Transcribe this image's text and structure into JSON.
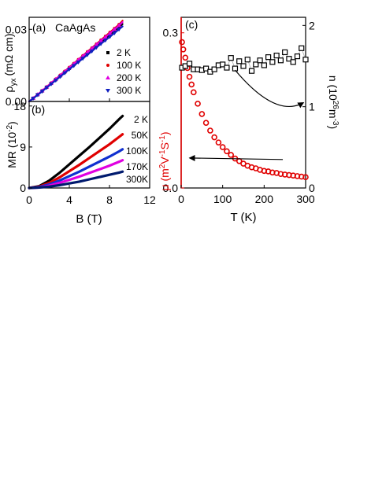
{
  "chart_data": [
    {
      "id": "a",
      "type": "scatter",
      "panel_label": "(a)",
      "title": "CaAgAs",
      "xlabel": "",
      "ylabel": "ρyx (mΩ cm)",
      "ylabel_main": "ρ",
      "ylabel_sub": "yx",
      "ylabel_unit": "(mΩ cm)",
      "xlim": [
        0,
        12
      ],
      "ylim": [
        0,
        0.035
      ],
      "yticks": [
        "0.00",
        "0.03"
      ],
      "ytick_values": [
        0,
        0.03
      ],
      "legend_position": "right",
      "series": [
        {
          "name": "2 K",
          "color": "#000000",
          "marker": "square",
          "x": [
            0,
            1,
            2,
            3,
            4,
            5,
            6,
            7,
            8,
            9,
            9.3
          ],
          "y": [
            0,
            0.0033,
            0.0068,
            0.0103,
            0.0138,
            0.0172,
            0.0207,
            0.0242,
            0.0277,
            0.0311,
            0.0322
          ]
        },
        {
          "name": "100 K",
          "color": "#e00000",
          "marker": "circle",
          "x": [
            0,
            1,
            2,
            3,
            4,
            5,
            6,
            7,
            8,
            9,
            9.3
          ],
          "y": [
            0,
            0.0034,
            0.007,
            0.0106,
            0.0142,
            0.0178,
            0.0214,
            0.025,
            0.0286,
            0.0322,
            0.0336
          ]
        },
        {
          "name": "200 K",
          "color": "#e000e0",
          "marker": "triangle-up",
          "x": [
            0,
            1,
            2,
            3,
            4,
            5,
            6,
            7,
            8,
            9,
            9.3
          ],
          "y": [
            0,
            0.0034,
            0.0069,
            0.0105,
            0.014,
            0.0176,
            0.0211,
            0.0247,
            0.0282,
            0.0318,
            0.033
          ]
        },
        {
          "name": "300 K",
          "color": "#1020c0",
          "marker": "triangle-down",
          "x": [
            0,
            1,
            2,
            3,
            4,
            5,
            6,
            7,
            8,
            9,
            9.3
          ],
          "y": [
            0,
            0.0032,
            0.0066,
            0.01,
            0.0134,
            0.0167,
            0.0201,
            0.0235,
            0.0268,
            0.0302,
            0.0312
          ]
        }
      ]
    },
    {
      "id": "b",
      "type": "line",
      "panel_label": "(b)",
      "xlabel": "B (T)",
      "ylabel": "MR (10-2)",
      "ylabel_main": "MR (10",
      "ylabel_sup": "-2",
      "ylabel_end": ")",
      "xlim": [
        0,
        12
      ],
      "ylim": [
        0,
        19
      ],
      "xticks": [
        "0",
        "4",
        "8",
        "12"
      ],
      "xtick_values": [
        0,
        4,
        8,
        12
      ],
      "yticks": [
        "0",
        "9",
        "18"
      ],
      "ytick_values": [
        0,
        9,
        18
      ],
      "series": [
        {
          "name": "2 K",
          "color": "#000000",
          "x": [
            0,
            1,
            2,
            3,
            4,
            5,
            6,
            7,
            8,
            9,
            9.3
          ],
          "y": [
            0,
            0.4,
            1.6,
            3.3,
            5.2,
            7.1,
            9.0,
            11.0,
            13.0,
            15.2,
            15.8
          ]
        },
        {
          "name": "50K",
          "color": "#e00000",
          "x": [
            0,
            1,
            2,
            3,
            4,
            5,
            6,
            7,
            8,
            9,
            9.3
          ],
          "y": [
            0,
            0.3,
            1.1,
            2.3,
            3.7,
            5.1,
            6.6,
            8.1,
            9.6,
            11.3,
            11.8
          ]
        },
        {
          "name": "100K",
          "color": "#1030d0",
          "x": [
            0,
            1,
            2,
            3,
            4,
            5,
            6,
            7,
            8,
            9,
            9.3
          ],
          "y": [
            0,
            0.2,
            0.8,
            1.6,
            2.6,
            3.6,
            4.7,
            5.8,
            6.9,
            8.1,
            8.5
          ]
        },
        {
          "name": "170K",
          "color": "#e000e0",
          "x": [
            0,
            1,
            2,
            3,
            4,
            5,
            6,
            7,
            8,
            9,
            9.3
          ],
          "y": [
            0,
            0.1,
            0.5,
            1.1,
            1.8,
            2.5,
            3.3,
            4.1,
            4.9,
            5.8,
            6.1
          ]
        },
        {
          "name": "300K",
          "color": "#001a6e",
          "x": [
            0,
            1,
            2,
            3,
            4,
            5,
            6,
            7,
            8,
            9,
            9.3
          ],
          "y": [
            0,
            0.1,
            0.3,
            0.6,
            1.0,
            1.4,
            1.9,
            2.4,
            2.9,
            3.4,
            3.6
          ]
        }
      ]
    },
    {
      "id": "c",
      "type": "scatter",
      "panel_label": "(c)",
      "xlabel": "T (K)",
      "xlim": [
        0,
        300
      ],
      "xticks": [
        "0",
        "100",
        "200",
        "300"
      ],
      "xtick_values": [
        0,
        100,
        200,
        300
      ],
      "left_axis": {
        "label_main": "μ (m",
        "label_sup1": "2",
        "label_mid": "V",
        "label_sup2": "-1",
        "label_mid2": "S",
        "label_sup3": "-1",
        "label_end": ")",
        "color": "#e00000",
        "ylim": [
          0,
          0.33
        ],
        "yticks": [
          "0.0",
          "0.3"
        ],
        "ytick_values": [
          0,
          0.3
        ]
      },
      "right_axis": {
        "label_main": "n (10",
        "label_sup1": "26",
        "label_mid": "m",
        "label_sup2": "-3",
        "label_end": ")",
        "color": "#000000",
        "ylim": [
          0,
          2.1
        ],
        "yticks": [
          "0",
          "1",
          "2"
        ],
        "ytick_values": [
          0,
          1,
          2
        ]
      },
      "series": [
        {
          "name": "μ",
          "axis": "left",
          "color": "#e00000",
          "marker": "open-circle",
          "x": [
            2,
            5,
            10,
            15,
            20,
            25,
            30,
            40,
            50,
            60,
            70,
            80,
            90,
            100,
            110,
            120,
            130,
            140,
            150,
            160,
            170,
            180,
            190,
            200,
            210,
            220,
            230,
            240,
            250,
            260,
            270,
            280,
            290,
            300
          ],
          "y": [
            0.282,
            0.268,
            0.252,
            0.232,
            0.215,
            0.2,
            0.185,
            0.163,
            0.143,
            0.126,
            0.111,
            0.098,
            0.088,
            0.079,
            0.071,
            0.064,
            0.057,
            0.052,
            0.047,
            0.043,
            0.04,
            0.038,
            0.035,
            0.033,
            0.032,
            0.03,
            0.029,
            0.027,
            0.026,
            0.025,
            0.024,
            0.023,
            0.022,
            0.021
          ]
        },
        {
          "name": "n",
          "axis": "right",
          "color": "#000000",
          "marker": "open-square",
          "x": [
            2,
            10,
            20,
            30,
            40,
            50,
            60,
            70,
            80,
            90,
            100,
            110,
            120,
            130,
            140,
            150,
            160,
            170,
            180,
            190,
            200,
            210,
            220,
            230,
            240,
            250,
            260,
            270,
            280,
            290,
            300
          ],
          "y": [
            1.48,
            1.5,
            1.53,
            1.46,
            1.46,
            1.45,
            1.47,
            1.43,
            1.46,
            1.51,
            1.52,
            1.48,
            1.6,
            1.47,
            1.56,
            1.5,
            1.58,
            1.44,
            1.52,
            1.57,
            1.51,
            1.61,
            1.55,
            1.63,
            1.57,
            1.67,
            1.59,
            1.55,
            1.62,
            1.72,
            1.58
          ]
        }
      ],
      "annotations": [
        {
          "type": "arrow",
          "direction": "to-right-axis",
          "from": [
            130,
            1.45
          ],
          "to": [
            295,
            1.05
          ]
        },
        {
          "type": "arrow",
          "direction": "to-left-axis",
          "from": [
            245,
            0.055
          ],
          "to": [
            20,
            0.058
          ]
        }
      ]
    }
  ]
}
